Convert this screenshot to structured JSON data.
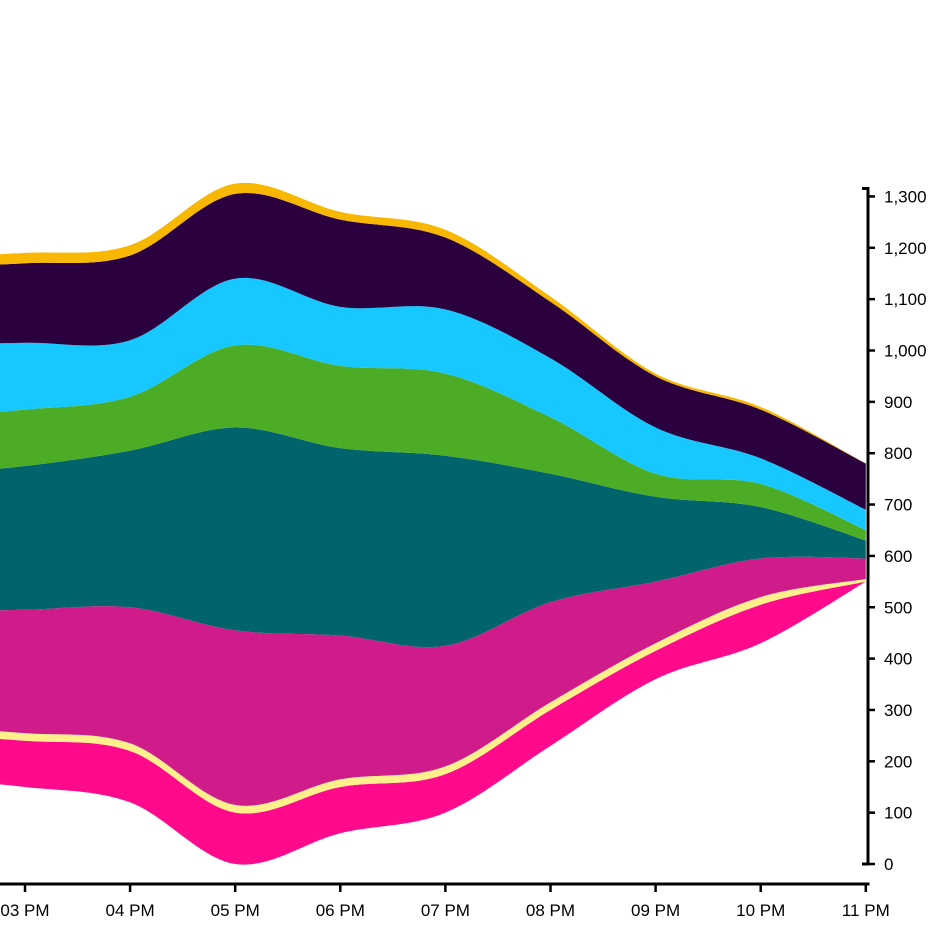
{
  "chart_data": {
    "type": "area",
    "stacked": true,
    "offset": "baseline varies (streamgraph-like)",
    "x": [
      "03 PM",
      "04 PM",
      "05 PM",
      "06 PM",
      "07 PM",
      "08 PM",
      "09 PM",
      "10 PM",
      "11 PM"
    ],
    "y_axis": {
      "position": "right",
      "ylim": [
        0,
        1330
      ],
      "ticks": [
        0,
        100,
        200,
        300,
        400,
        500,
        600,
        700,
        800,
        900,
        1000,
        1100,
        1200,
        1300
      ],
      "tick_labels": [
        "0",
        "100",
        "200",
        "300",
        "400",
        "500",
        "600",
        "700",
        "800",
        "900",
        "1,000",
        "1,100",
        "1,200",
        "1,300"
      ]
    },
    "x_axis": {
      "position": "bottom"
    },
    "grid": false,
    "legend": "none",
    "baseline": [
      150,
      120,
      0,
      60,
      100,
      230,
      360,
      430,
      550
    ],
    "series": [
      {
        "color": "#ff0a8c",
        "values": [
          90,
          100,
          100,
          90,
          75,
          70,
          55,
          75,
          0
        ]
      },
      {
        "color": "#fff08c",
        "values": [
          15,
          15,
          15,
          15,
          15,
          15,
          15,
          15,
          5
        ]
      },
      {
        "color": "#d01c8b",
        "values": [
          240,
          265,
          340,
          280,
          235,
          195,
          120,
          75,
          40
        ]
      },
      {
        "color": "#01636b",
        "values": [
          280,
          305,
          395,
          365,
          370,
          250,
          165,
          100,
          35
        ]
      },
      {
        "color": "#4dac26",
        "values": [
          110,
          105,
          160,
          160,
          160,
          110,
          45,
          45,
          20
        ]
      },
      {
        "color": "#16c8ff",
        "values": [
          130,
          110,
          130,
          115,
          125,
          115,
          90,
          50,
          40
        ]
      },
      {
        "color": "#2a003e",
        "values": [
          155,
          165,
          165,
          170,
          140,
          110,
          100,
          95,
          90
        ]
      },
      {
        "color": "#f8b700",
        "values": [
          20,
          20,
          20,
          15,
          15,
          10,
          5,
          5,
          0
        ]
      }
    ]
  }
}
